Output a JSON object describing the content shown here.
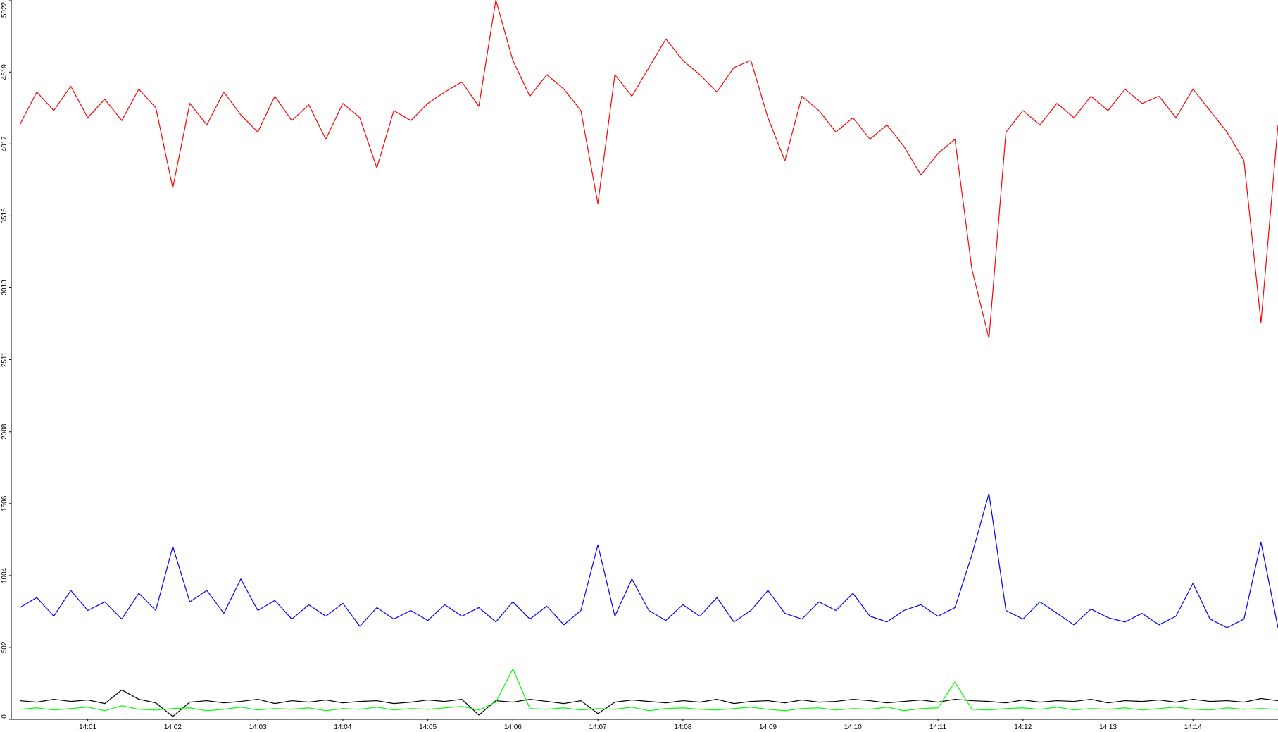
{
  "chart_data": {
    "type": "line",
    "x": [
      840.2,
      840.4,
      840.6,
      840.8,
      841.0,
      841.2,
      841.4,
      841.6,
      841.8,
      842.0,
      842.2,
      842.4,
      842.6,
      842.8,
      843.0,
      843.2,
      843.4,
      843.6,
      843.8,
      844.0,
      844.2,
      844.4,
      844.6,
      844.8,
      845.0,
      845.2,
      845.4,
      845.6,
      845.8,
      846.0,
      846.2,
      846.4,
      846.6,
      846.8,
      847.0,
      847.2,
      847.4,
      847.6,
      847.8,
      848.0,
      848.2,
      848.4,
      848.6,
      848.8,
      849.0,
      849.2,
      849.4,
      849.6,
      849.8,
      850.0,
      850.2,
      850.4,
      850.6,
      850.8,
      851.0,
      851.2,
      851.4,
      851.6,
      851.8,
      852.0,
      852.2,
      852.4,
      852.6,
      852.8,
      853.0,
      853.2,
      853.4,
      853.6,
      853.8,
      854.0,
      854.2,
      854.4,
      854.6,
      854.8,
      855.0
    ],
    "series": [
      {
        "color": "#ff0000",
        "values": [
          4150,
          4380,
          4250,
          4420,
          4200,
          4330,
          4180,
          4400,
          4270,
          3710,
          4300,
          4150,
          4380,
          4220,
          4100,
          4350,
          4180,
          4290,
          4050,
          4300,
          4200,
          3850,
          4250,
          4180,
          4300,
          4380,
          4450,
          4280,
          5022,
          4600,
          4350,
          4500,
          4400,
          4250,
          3600,
          4500,
          4350,
          4550,
          4750,
          4600,
          4500,
          4380,
          4550,
          4600,
          4200,
          3900,
          4350,
          4250,
          4100,
          4200,
          4050,
          4150,
          4000,
          3800,
          3950,
          4050,
          3140,
          2660,
          4100,
          4250,
          4150,
          4300,
          4200,
          4350,
          4250,
          4400,
          4300,
          4350,
          4200,
          4400,
          4250,
          4100,
          3900,
          2770,
          4150
        ]
      },
      {
        "color": "#0000ff",
        "values": [
          780,
          850,
          720,
          900,
          760,
          820,
          700,
          880,
          760,
          1207,
          820,
          900,
          740,
          980,
          760,
          830,
          700,
          800,
          720,
          810,
          650,
          780,
          700,
          760,
          690,
          800,
          720,
          780,
          680,
          820,
          700,
          790,
          660,
          760,
          1218,
          720,
          980,
          760,
          690,
          800,
          720,
          850,
          680,
          760,
          900,
          740,
          700,
          820,
          760,
          880,
          720,
          680,
          760,
          800,
          720,
          780,
          1150,
          1577,
          760,
          700,
          820,
          740,
          660,
          770,
          710,
          680,
          740,
          660,
          720,
          950,
          700,
          640,
          700,
          1236,
          640
        ]
      },
      {
        "color": "#000000",
        "values": [
          130,
          120,
          140,
          125,
          135,
          110,
          205,
          140,
          115,
          20,
          120,
          130,
          115,
          125,
          140,
          110,
          130,
          120,
          135,
          115,
          125,
          130,
          110,
          120,
          135,
          125,
          140,
          30,
          130,
          120,
          140,
          125,
          110,
          130,
          40,
          120,
          135,
          125,
          115,
          130,
          120,
          140,
          110,
          125,
          130,
          115,
          135,
          120,
          125,
          140,
          130,
          115,
          125,
          135,
          120,
          140,
          130,
          125,
          115,
          135,
          120,
          130,
          125,
          140,
          115,
          130,
          125,
          135,
          120,
          140,
          125,
          130,
          120,
          145,
          130
        ]
      },
      {
        "color": "#00ff00",
        "values": [
          70,
          80,
          65,
          75,
          85,
          60,
          95,
          70,
          65,
          75,
          80,
          60,
          70,
          85,
          65,
          75,
          70,
          80,
          60,
          75,
          70,
          85,
          65,
          75,
          70,
          80,
          90,
          65,
          120,
          353,
          75,
          70,
          80,
          65,
          75,
          70,
          85,
          60,
          75,
          80,
          70,
          65,
          75,
          85,
          70,
          60,
          75,
          80,
          65,
          75,
          70,
          85,
          60,
          75,
          80,
          260,
          70,
          65,
          75,
          80,
          70,
          85,
          65,
          75,
          70,
          80,
          65,
          75,
          85,
          70,
          65,
          80,
          70,
          75,
          70
        ]
      }
    ],
    "xlim": [
      840.1,
      855.0
    ],
    "xticks": [
      {
        "value": 841,
        "label": "14:01"
      },
      {
        "value": 842,
        "label": "14:02"
      },
      {
        "value": 843,
        "label": "14:03"
      },
      {
        "value": 844,
        "label": "14:04"
      },
      {
        "value": 845,
        "label": "14:05"
      },
      {
        "value": 846,
        "label": "14:06"
      },
      {
        "value": 847,
        "label": "14:07"
      },
      {
        "value": 848,
        "label": "14:08"
      },
      {
        "value": 849,
        "label": "14:09"
      },
      {
        "value": 850,
        "label": "14:10"
      },
      {
        "value": 851,
        "label": "14:11"
      },
      {
        "value": 852,
        "label": "14:12"
      },
      {
        "value": 853,
        "label": "14:13"
      },
      {
        "value": 854,
        "label": "14:14"
      }
    ],
    "ylim": [
      0,
      5022
    ],
    "yticks": [
      0,
      502,
      1004,
      1506,
      2008,
      2511,
      3013,
      3515,
      4017,
      4519,
      5022
    ],
    "grid": false
  }
}
